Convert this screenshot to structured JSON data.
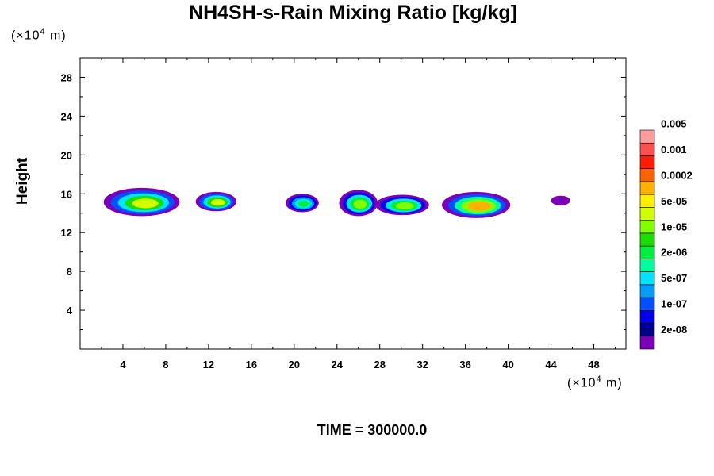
{
  "chart_data": {
    "type": "heatmap",
    "title": "NH4SH-s-Rain Mixing Ratio [kg/kg]",
    "xlabel": "",
    "ylabel": "Height",
    "x_unit": {
      "prefix": "(×10",
      "exp": "4",
      "suffix": " m)"
    },
    "y_unit": {
      "prefix": "(×10",
      "exp": "4",
      "suffix": " m)"
    },
    "xlim": [
      0,
      51
    ],
    "ylim": [
      0,
      30
    ],
    "x_ticks": [
      4,
      8,
      12,
      16,
      20,
      24,
      28,
      32,
      36,
      40,
      44,
      48
    ],
    "y_ticks": [
      4,
      8,
      12,
      16,
      20,
      24,
      28
    ],
    "footer": "TIME = 300000.0",
    "colorbar": {
      "levels": [
        "2e-08",
        "1e-07",
        "5e-07",
        "2e-06",
        "1e-05",
        "5e-05",
        "0.0002",
        "0.001",
        "0.005"
      ],
      "colors": [
        "#7a00b8",
        "#00008c",
        "#0000e6",
        "#0050ff",
        "#009cff",
        "#00e4ff",
        "#00ff9c",
        "#00ee40",
        "#1cdc00",
        "#82ff00",
        "#d2ff00",
        "#ffee00",
        "#ffb000",
        "#ff6000",
        "#ff1c00",
        "#ff5050",
        "#ff9c9c"
      ]
    },
    "cells": [
      {
        "x": [
          2.2,
          9.3
        ],
        "y": [
          13.7,
          16.6
        ],
        "peak_level": 10
      },
      {
        "x": [
          10.8,
          14.6
        ],
        "y": [
          14.2,
          16.2
        ],
        "peak_level": 10
      },
      {
        "x": [
          19.2,
          22.3
        ],
        "y": [
          14.1,
          16.0
        ],
        "peak_level": 7
      },
      {
        "x": [
          24.2,
          27.8
        ],
        "y": [
          13.7,
          16.4
        ],
        "peak_level": 9
      },
      {
        "x": [
          27.6,
          32.6
        ],
        "y": [
          13.8,
          15.9
        ],
        "peak_level": 9
      },
      {
        "x": [
          33.8,
          40.2
        ],
        "y": [
          13.5,
          16.2
        ],
        "peak_level": 12
      },
      {
        "x": [
          44.0,
          45.8
        ],
        "y": [
          14.8,
          15.8
        ],
        "peak_level": 0
      }
    ]
  }
}
